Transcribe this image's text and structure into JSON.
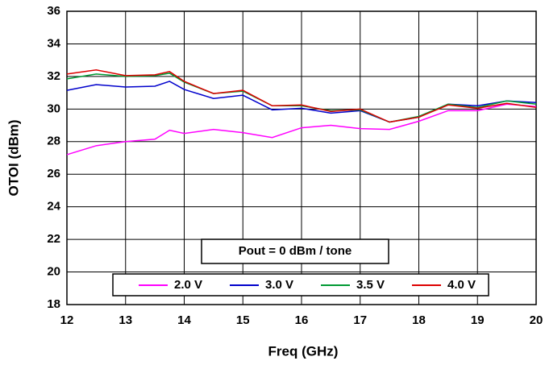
{
  "chart_data": {
    "type": "line",
    "xlabel": "Freq (GHz)",
    "ylabel": "OTOI (dBm)",
    "annotations": [
      "Pout = 0 dBm / tone"
    ],
    "x": [
      12,
      12.5,
      13,
      13.5,
      13.75,
      14,
      14.5,
      15,
      15.5,
      16,
      16.5,
      17,
      17.5,
      18,
      18.5,
      19,
      19.5,
      20
    ],
    "series": [
      {
        "name": "2.0 V",
        "color": "#ff00ff",
        "values": [
          27.2,
          27.75,
          28.0,
          28.15,
          28.7,
          28.5,
          28.75,
          28.55,
          28.25,
          28.85,
          29.0,
          28.8,
          28.75,
          29.25,
          29.9,
          29.9,
          30.3,
          30.15
        ]
      },
      {
        "name": "3.0 V",
        "color": "#0000cc",
        "values": [
          31.15,
          31.5,
          31.35,
          31.4,
          31.7,
          31.2,
          30.65,
          30.85,
          29.95,
          30.05,
          29.75,
          29.9,
          29.2,
          29.5,
          30.3,
          30.2,
          30.5,
          30.4
        ]
      },
      {
        "name": "3.5 V",
        "color": "#009933",
        "values": [
          31.85,
          32.15,
          32.0,
          32.05,
          32.2,
          31.65,
          30.95,
          31.1,
          30.2,
          30.2,
          29.9,
          29.95,
          29.2,
          29.55,
          30.3,
          30.1,
          30.5,
          30.3
        ]
      },
      {
        "name": "4.0 V",
        "color": "#dd0000",
        "values": [
          32.15,
          32.4,
          32.05,
          32.1,
          32.3,
          31.7,
          30.95,
          31.15,
          30.2,
          30.25,
          29.85,
          30.0,
          29.2,
          29.5,
          30.25,
          30.05,
          30.35,
          30.1
        ]
      }
    ],
    "xlim": [
      12,
      20
    ],
    "xticks": [
      12,
      13,
      14,
      15,
      16,
      17,
      18,
      19,
      20
    ],
    "ylim": [
      18,
      36
    ],
    "yticks": [
      18,
      20,
      22,
      24,
      26,
      28,
      30,
      32,
      34,
      36
    ],
    "grid": true
  }
}
